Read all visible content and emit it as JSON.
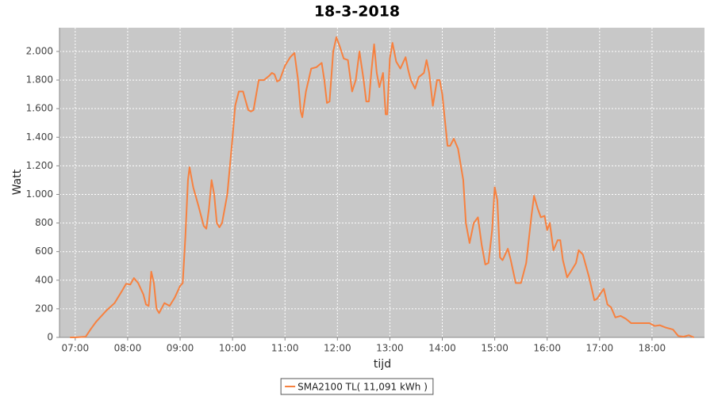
{
  "chart_data": {
    "type": "line",
    "title": "18-3-2018",
    "x_label": "tijd",
    "y_label": "Watt",
    "x": [
      6.9,
      7.0,
      7.2,
      7.3,
      7.4,
      7.5,
      7.6,
      7.75,
      7.9,
      7.97,
      8.05,
      8.12,
      8.2,
      8.3,
      8.35,
      8.4,
      8.45,
      8.5,
      8.55,
      8.6,
      8.7,
      8.8,
      8.9,
      9.0,
      9.05,
      9.1,
      9.15,
      9.18,
      9.25,
      9.35,
      9.45,
      9.5,
      9.55,
      9.6,
      9.65,
      9.7,
      9.75,
      9.8,
      9.9,
      10.0,
      10.05,
      10.12,
      10.2,
      10.3,
      10.35,
      10.4,
      10.5,
      10.6,
      10.7,
      10.75,
      10.8,
      10.85,
      10.9,
      11.0,
      11.1,
      11.18,
      11.25,
      11.3,
      11.33,
      11.4,
      11.5,
      11.6,
      11.7,
      11.75,
      11.8,
      11.85,
      11.92,
      11.98,
      12.05,
      12.12,
      12.2,
      12.28,
      12.35,
      12.42,
      12.5,
      12.55,
      12.6,
      12.65,
      12.7,
      12.75,
      12.8,
      12.87,
      12.92,
      12.95,
      13.0,
      13.05,
      13.12,
      13.2,
      13.3,
      13.35,
      13.4,
      13.48,
      13.55,
      13.65,
      13.7,
      13.75,
      13.82,
      13.9,
      13.95,
      14.0,
      14.1,
      14.15,
      14.22,
      14.3,
      14.4,
      14.45,
      14.52,
      14.6,
      14.68,
      14.75,
      14.82,
      14.88,
      14.95,
      15.0,
      15.05,
      15.1,
      15.15,
      15.25,
      15.3,
      15.4,
      15.5,
      15.6,
      15.7,
      15.75,
      15.82,
      15.88,
      15.95,
      16.0,
      16.05,
      16.12,
      16.2,
      16.25,
      16.3,
      16.38,
      16.45,
      16.55,
      16.6,
      16.68,
      16.8,
      16.9,
      16.95,
      17.08,
      17.15,
      17.22,
      17.3,
      17.4,
      17.5,
      17.6,
      17.75,
      17.95,
      18.05,
      18.15,
      18.25,
      18.4,
      18.5,
      18.6,
      18.7,
      18.8
    ],
    "series": [
      {
        "name": "SMA2100 TL( 11,091 kWh )",
        "color": "#f7813f",
        "values": [
          0,
          0,
          5,
          60,
          110,
          150,
          190,
          240,
          330,
          375,
          370,
          415,
          380,
          300,
          230,
          220,
          460,
          380,
          200,
          170,
          240,
          220,
          280,
          360,
          380,
          700,
          1100,
          1190,
          1050,
          920,
          780,
          760,
          900,
          1100,
          1000,
          800,
          770,
          800,
          1000,
          1400,
          1620,
          1720,
          1720,
          1590,
          1580,
          1590,
          1800,
          1800,
          1830,
          1850,
          1840,
          1790,
          1800,
          1900,
          1960,
          1990,
          1800,
          1580,
          1540,
          1720,
          1880,
          1890,
          1920,
          1800,
          1640,
          1650,
          2000,
          2100,
          2030,
          1950,
          1940,
          1720,
          1800,
          2000,
          1800,
          1650,
          1650,
          1870,
          2050,
          1850,
          1750,
          1850,
          1560,
          1560,
          1950,
          2060,
          1930,
          1880,
          1960,
          1870,
          1800,
          1740,
          1820,
          1850,
          1940,
          1850,
          1620,
          1800,
          1800,
          1700,
          1340,
          1340,
          1390,
          1320,
          1100,
          800,
          660,
          800,
          840,
          650,
          510,
          520,
          750,
          1050,
          960,
          560,
          540,
          620,
          550,
          380,
          380,
          520,
          850,
          990,
          900,
          840,
          850,
          750,
          800,
          610,
          680,
          680,
          540,
          420,
          460,
          520,
          610,
          580,
          420,
          260,
          270,
          340,
          230,
          210,
          140,
          150,
          130,
          100,
          100,
          100,
          80,
          85,
          70,
          55,
          10,
          5,
          15,
          0
        ]
      }
    ],
    "xlim": [
      6.7,
      19.0
    ],
    "xticks": [
      {
        "value": 7,
        "label": "07:00"
      },
      {
        "value": 8,
        "label": "08:00"
      },
      {
        "value": 9,
        "label": "09:00"
      },
      {
        "value": 10,
        "label": "10:00"
      },
      {
        "value": 11,
        "label": "11:00"
      },
      {
        "value": 12,
        "label": "12:00"
      },
      {
        "value": 13,
        "label": "13:00"
      },
      {
        "value": 14,
        "label": "14:00"
      },
      {
        "value": 15,
        "label": "15:00"
      },
      {
        "value": 16,
        "label": "16:00"
      },
      {
        "value": 17,
        "label": "17:00"
      },
      {
        "value": 18,
        "label": "18:00"
      }
    ],
    "ylim": [
      0,
      2166
    ],
    "yticks": [
      0,
      200,
      400,
      600,
      800,
      {
        "value": 1000,
        "label": "1.000"
      },
      {
        "value": 1200,
        "label": "1.200"
      },
      {
        "value": 1400,
        "label": "1.400"
      },
      {
        "value": 1600,
        "label": "1.600"
      },
      {
        "value": 1800,
        "label": "1.800"
      },
      {
        "value": 2000,
        "label": "2.000"
      }
    ],
    "grid": true,
    "legend": "bottom"
  }
}
